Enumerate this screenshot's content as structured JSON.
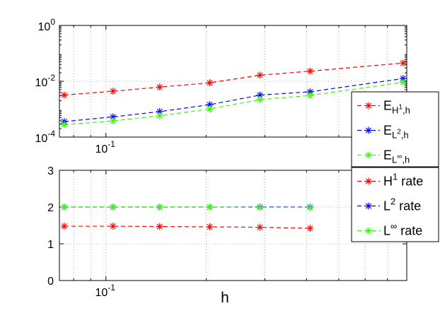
{
  "chart_data": [
    {
      "type": "line",
      "xscale": "log",
      "yscale": "log",
      "xlim": [
        0.0725,
        0.8
      ],
      "ylim": [
        0.0001,
        1
      ],
      "grid": true,
      "legend_position": "right-bottom",
      "y_ticks": [
        {
          "value": 0.0001,
          "base": "10",
          "exp": "-4"
        },
        {
          "value": 0.01,
          "base": "10",
          "exp": "-2"
        },
        {
          "value": 1,
          "base": "10",
          "exp": "0"
        }
      ],
      "x_ticks": [
        {
          "value": 0.1,
          "base": "10",
          "exp": "-1"
        }
      ],
      "x": [
        0.075,
        0.105,
        0.145,
        0.205,
        0.29,
        0.41,
        0.78
      ],
      "series": [
        {
          "name": "E",
          "legend": {
            "main": "E",
            "sub": "H",
            "supsub": "1",
            "tail": ",h"
          },
          "color": "#ff0000",
          "values": [
            0.0032,
            0.0044,
            0.0062,
            0.0088,
            0.0165,
            0.023,
            0.045
          ]
        },
        {
          "name": "E",
          "legend": {
            "main": "E",
            "sub": "L",
            "supsub": "2",
            "tail": ",h"
          },
          "color": "#0000ff",
          "values": [
            0.00036,
            0.00053,
            0.00082,
            0.00145,
            0.0032,
            0.0042,
            0.0125
          ]
        },
        {
          "name": "E",
          "legend": {
            "main": "E",
            "sub": "L",
            "supsub": "∞",
            "tail": ",h"
          },
          "color": "#33ff00",
          "values": [
            0.00028,
            0.00038,
            0.00058,
            0.00102,
            0.0022,
            0.0031,
            0.0092
          ]
        }
      ]
    },
    {
      "type": "line",
      "xscale": "log",
      "yscale": "linear",
      "xlim": [
        0.0725,
        0.8
      ],
      "ylim": [
        0,
        3
      ],
      "grid": true,
      "xlabel": "h",
      "legend_position": "right-top",
      "y_ticks": [
        {
          "value": 0,
          "label": "0"
        },
        {
          "value": 1,
          "label": "1"
        },
        {
          "value": 2,
          "label": "2"
        },
        {
          "value": 3,
          "label": "3"
        }
      ],
      "x_ticks": [
        {
          "value": 0.1,
          "base": "10",
          "exp": "-1"
        }
      ],
      "x": [
        0.075,
        0.105,
        0.145,
        0.205,
        0.29,
        0.41
      ],
      "series": [
        {
          "name": "H1 rate",
          "legend": {
            "main": "H",
            "sup": "1",
            "tail": " rate"
          },
          "color": "#ff0000",
          "values": [
            1.48,
            1.48,
            1.47,
            1.46,
            1.45,
            1.42
          ]
        },
        {
          "name": "L2 rate",
          "legend": {
            "main": "L",
            "sup": "2",
            "tail": " rate"
          },
          "color": "#0000ff",
          "values": [
            2.0,
            2.0,
            2.0,
            2.0,
            2.0,
            2.0
          ]
        },
        {
          "name": "L∞ rate",
          "legend": {
            "main": "L",
            "sup": "∞",
            "tail": " rate"
          },
          "color": "#33ff00",
          "values": [
            2.0,
            2.0,
            2.0,
            2.0,
            1.99,
            1.99
          ]
        }
      ]
    }
  ]
}
